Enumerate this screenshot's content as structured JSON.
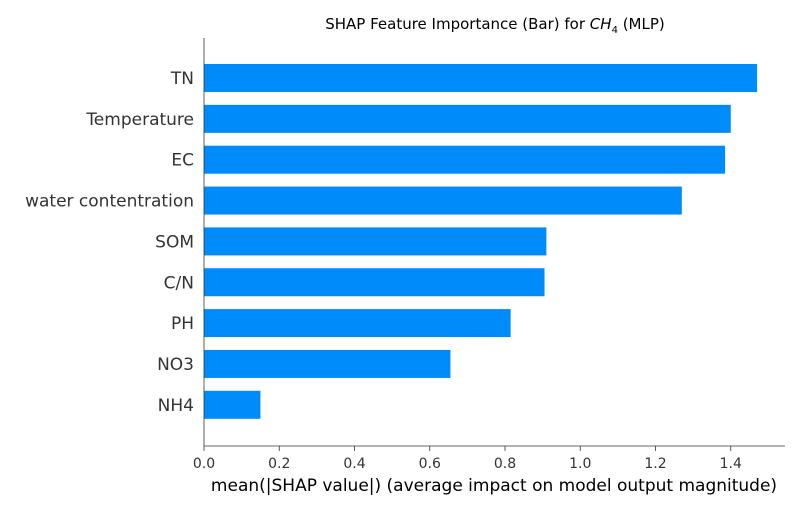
{
  "chart_data": {
    "type": "bar",
    "orientation": "horizontal",
    "title_prefix": "SHAP Feature Importance (Bar) for ",
    "title_math_base": "CH",
    "title_math_sub": "4",
    "title_suffix": " (MLP)",
    "xlabel": "mean(|SHAP value|) (average impact on model output magnitude)",
    "categories": [
      "TN",
      "Temperature",
      "EC",
      "water contentration",
      "SOM",
      "C/N",
      "PH",
      "NO3",
      "NH4"
    ],
    "values": [
      1.47,
      1.4,
      1.385,
      1.27,
      0.91,
      0.905,
      0.815,
      0.655,
      0.15
    ],
    "xlim": [
      0,
      1.55
    ],
    "xticks": [
      "0.0",
      "0.2",
      "0.4",
      "0.6",
      "0.8",
      "1.0",
      "1.2",
      "1.4"
    ],
    "bar_color": "#008BFB",
    "grid": false
  }
}
